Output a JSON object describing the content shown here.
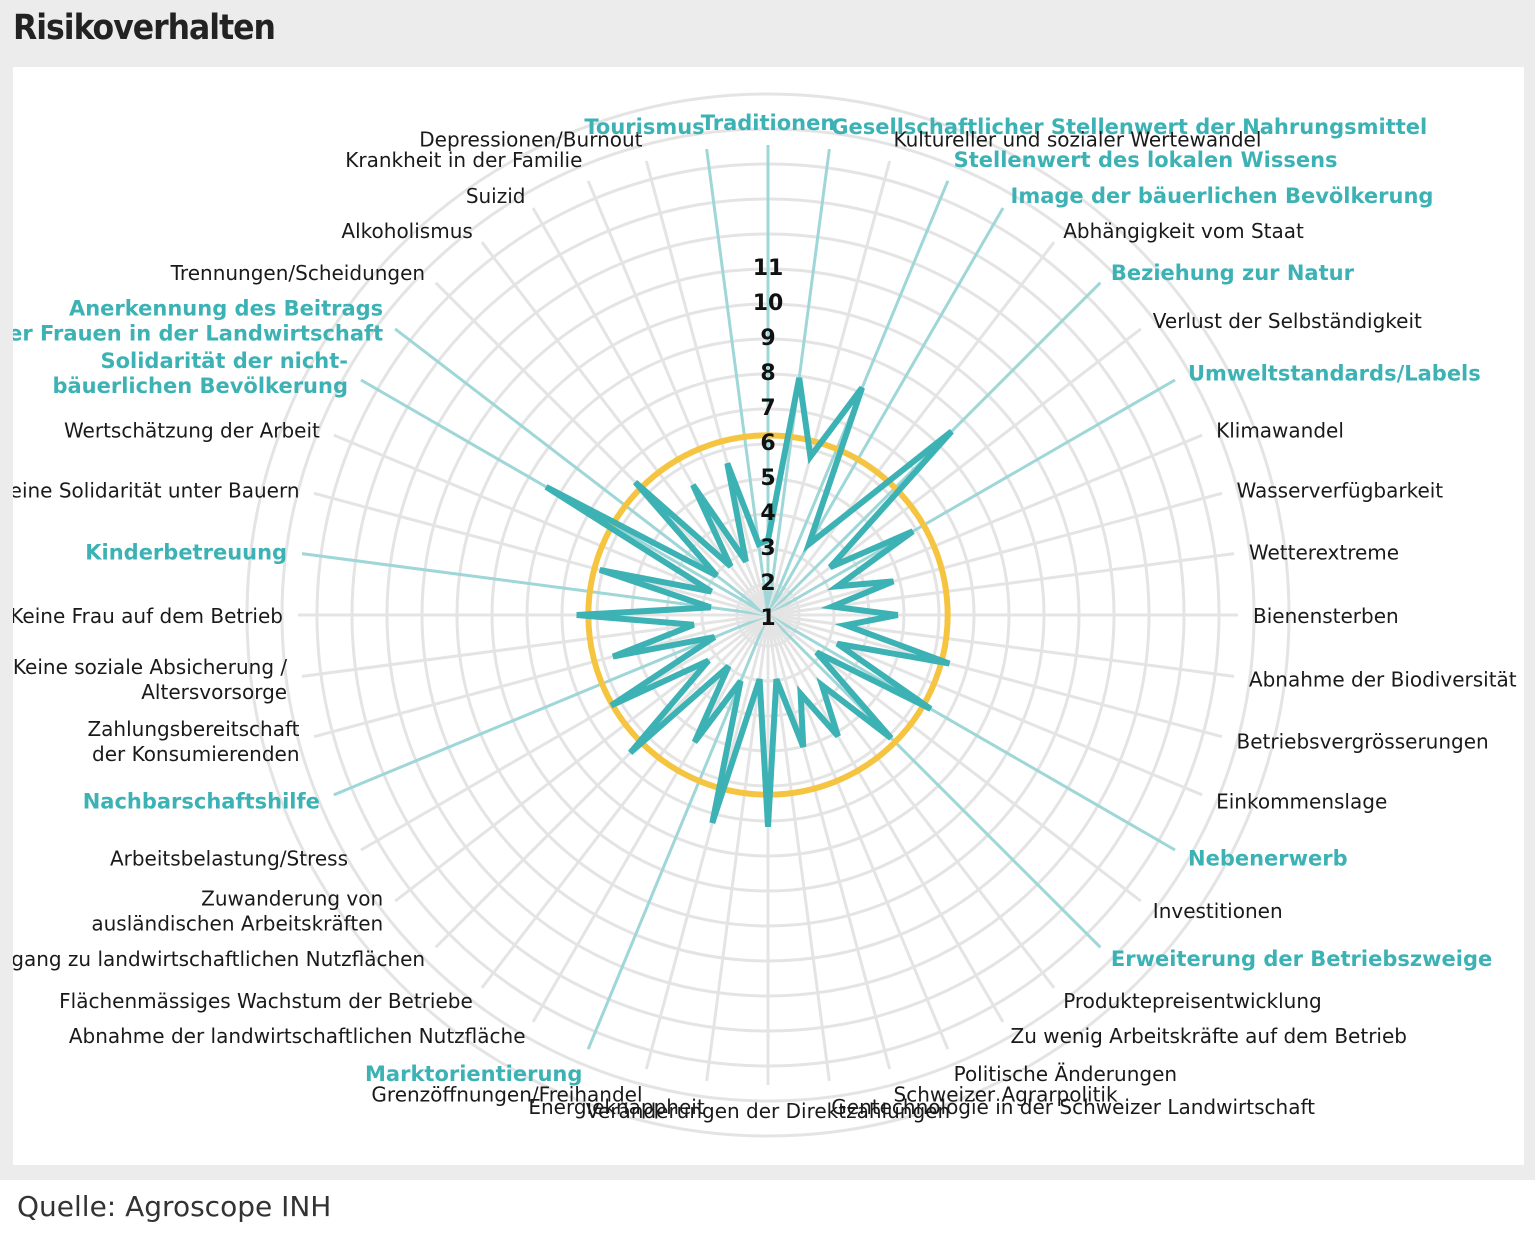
{
  "title": "Risikoverhalten",
  "source": "Quelle: Agroscope INH",
  "colors": {
    "highlight": "#3db2b5",
    "spoke": "#9fd6d7",
    "ring": "#f5c542",
    "grid": "#e4e4e4",
    "text": "#1a1a1a"
  },
  "chart_data": {
    "type": "radar",
    "title": "Risikoverhalten",
    "scale": {
      "min": 0,
      "max": 11,
      "ticks": [
        1,
        2,
        3,
        4,
        5,
        6,
        7,
        8,
        9,
        10,
        11
      ]
    },
    "threshold": 6,
    "categories": [
      "Traditionen",
      "Gesellschaftlicher Stellenwert der Nahrungsmittel",
      "Kultureller und sozialer Wertewandel",
      "Stellenwert des lokalen Wissens",
      "Image der bäuerlichen Bevölkerung",
      "Abhängigkeit vom Staat",
      "Beziehung zur Natur",
      "Verlust der Selbständigkeit",
      "Umweltstandards/Labels",
      "Klimawandel",
      "Wasserverfügbarkeit",
      "Wetterextreme",
      "Bienensterben",
      "Abnahme der Biodiversität",
      "Betriebsvergrösserungen",
      "Einkommenslage",
      "Nebenerwerb",
      "Investitionen",
      "Erweiterung der Betriebszweige",
      "Produktepreisentwicklung",
      "Zu wenig Arbeitskräfte auf dem Betrieb",
      "Politische Änderungen",
      "Schweizer Agrarpolitik",
      "Gentechnologie in der Schweizer Landwirtschaft",
      "Veränderungen der Direktzahlungen",
      "Energieknappheit",
      "Grenzöffnungen/Freihandel",
      "Marktorientierung",
      "Abnahme der landwirtschaftlichen Nutzfläche",
      "Flächenmässiges Wachstum der Betriebe",
      "Zugang zu landwirtschaftlichen Nutzflächen",
      "Zuwanderung von ausländischen Arbeitskräften",
      "Arbeitsbelastung/Stress",
      "Nachbarschaftshilfe",
      "Zahlungsbereitschaft der Konsumierenden",
      "Keine soziale Absicherung / Altersvorsorge",
      "Keine Frau auf dem Betrieb",
      "Kinderbetreuung",
      "Keine Solidarität unter Bauern",
      "Wertschätzung der Arbeit",
      "Solidarität der nicht-bäuerlichen Bevölkerung",
      "Anerkennung des Beitrags der Frauen in der Landwirtschaft",
      "Trennungen/Scheidungen",
      "Alkoholismus",
      "Suizid",
      "Krankheit in der Familie",
      "Depressionen/Burnout",
      "Tourismus"
    ],
    "highlighted": [
      "Traditionen",
      "Gesellschaftlicher Stellenwert der Nahrungsmittel",
      "Stellenwert des lokalen Wissens",
      "Image der bäuerlichen Bevölkerung",
      "Beziehung zur Natur",
      "Umweltstandards/Labels",
      "Nebenerwerb",
      "Erweiterung der Betriebszweige",
      "Marktorientierung",
      "Nachbarschaftshilfe",
      "Kinderbetreuung",
      "Solidarität der nicht-bäuerlichen Bevölkerung",
      "Anerkennung des Beitrags der Frauen in der Landwirtschaft",
      "Tourismus"
    ],
    "values": [
      2.5,
      7.3,
      5.1,
      7.5,
      2.7,
      3.9,
      7.9,
      2.6,
      5.2,
      2.5,
      4.1,
      2.2,
      4.1,
      2.6,
      5.8,
      2.5,
      5.8,
      2.1,
      5.4,
      2.9,
      4.4,
      2.8,
      4.3,
      2.2,
      6.5,
      2.2,
      6.6,
      2.4,
      4.6,
      2.2,
      6.0,
      2.5,
      5.6,
      2.0,
      5.0,
      2.5,
      5.9,
      2.0,
      5.4,
      2.1,
      7.8,
      2.2,
      5.8,
      2.1,
      4.7,
      2.0,
      4.9,
      2.4
    ]
  },
  "labels": [
    {
      "lines": [
        "Traditionen"
      ],
      "hl": true
    },
    {
      "lines": [
        "Gesellschaftlicher Stellenwert der Nahrungsmittel"
      ],
      "hl": true
    },
    {
      "lines": [
        "Kultureller und sozialer Wertewandel"
      ],
      "hl": false
    },
    {
      "lines": [
        "Stellenwert des lokalen Wissens"
      ],
      "hl": true
    },
    {
      "lines": [
        "Image der bäuerlichen Bevölkerung"
      ],
      "hl": true
    },
    {
      "lines": [
        "Abhängigkeit vom Staat"
      ],
      "hl": false
    },
    {
      "lines": [
        "Beziehung zur Natur"
      ],
      "hl": true
    },
    {
      "lines": [
        "Verlust der Selbständigkeit"
      ],
      "hl": false
    },
    {
      "lines": [
        "Umweltstandards/Labels"
      ],
      "hl": true
    },
    {
      "lines": [
        "Klimawandel"
      ],
      "hl": false
    },
    {
      "lines": [
        "Wasserverfügbarkeit"
      ],
      "hl": false
    },
    {
      "lines": [
        "Wetterextreme"
      ],
      "hl": false
    },
    {
      "lines": [
        "Bienensterben"
      ],
      "hl": false
    },
    {
      "lines": [
        "Abnahme der Biodiversität"
      ],
      "hl": false
    },
    {
      "lines": [
        "Betriebsvergrösserungen"
      ],
      "hl": false
    },
    {
      "lines": [
        "Einkommenslage"
      ],
      "hl": false
    },
    {
      "lines": [
        "Nebenerwerb"
      ],
      "hl": true
    },
    {
      "lines": [
        "Investitionen"
      ],
      "hl": false
    },
    {
      "lines": [
        "Erweiterung der Betriebszweige"
      ],
      "hl": true
    },
    {
      "lines": [
        "Produktepreisentwicklung"
      ],
      "hl": false
    },
    {
      "lines": [
        "Zu wenig Arbeitskräfte auf dem Betrieb"
      ],
      "hl": false
    },
    {
      "lines": [
        "Politische Änderungen"
      ],
      "hl": false
    },
    {
      "lines": [
        "Schweizer Agrarpolitik"
      ],
      "hl": false
    },
    {
      "lines": [
        "Gentechnologie in der Schweizer Landwirtschaft"
      ],
      "hl": false
    },
    {
      "lines": [
        "Veränderungen der Direktzahlungen"
      ],
      "hl": false
    },
    {
      "lines": [
        "Energieknappheit"
      ],
      "hl": false
    },
    {
      "lines": [
        "Grenzöffnungen/Freihandel"
      ],
      "hl": false
    },
    {
      "lines": [
        "Marktorientierung"
      ],
      "hl": true
    },
    {
      "lines": [
        "Abnahme der landwirtschaftlichen Nutzfläche"
      ],
      "hl": false
    },
    {
      "lines": [
        "Flächenmässiges Wachstum der Betriebe"
      ],
      "hl": false
    },
    {
      "lines": [
        "Zugang zu landwirtschaftlichen Nutzflächen"
      ],
      "hl": false
    },
    {
      "lines": [
        "Zuwanderung von",
        "ausländischen Arbeitskräften"
      ],
      "hl": false
    },
    {
      "lines": [
        "Arbeitsbelastung/Stress"
      ],
      "hl": false
    },
    {
      "lines": [
        "Nachbarschaftshilfe"
      ],
      "hl": true
    },
    {
      "lines": [
        "Zahlungsbereitschaft",
        "der Konsumierenden"
      ],
      "hl": false
    },
    {
      "lines": [
        "Keine soziale Absicherung /",
        "Altersvorsorge"
      ],
      "hl": false
    },
    {
      "lines": [
        "Keine Frau auf dem Betrieb"
      ],
      "hl": false
    },
    {
      "lines": [
        "Kinderbetreuung"
      ],
      "hl": true
    },
    {
      "lines": [
        "Keine Solidarität unter Bauern"
      ],
      "hl": false
    },
    {
      "lines": [
        "Wertschätzung der Arbeit"
      ],
      "hl": false
    },
    {
      "lines": [
        "Solidarität der nicht-",
        "bäuerlichen Bevölkerung"
      ],
      "hl": true
    },
    {
      "lines": [
        "Anerkennung des Beitrags",
        "der Frauen in der Landwirtschaft"
      ],
      "hl": true
    },
    {
      "lines": [
        "Trennungen/Scheidungen"
      ],
      "hl": false
    },
    {
      "lines": [
        "Alkoholismus"
      ],
      "hl": false
    },
    {
      "lines": [
        "Suizid"
      ],
      "hl": false
    },
    {
      "lines": [
        "Krankheit in der Familie"
      ],
      "hl": false
    },
    {
      "lines": [
        "Depressionen/Burnout"
      ],
      "hl": false
    },
    {
      "lines": [
        "Tourismus"
      ],
      "hl": true
    }
  ]
}
